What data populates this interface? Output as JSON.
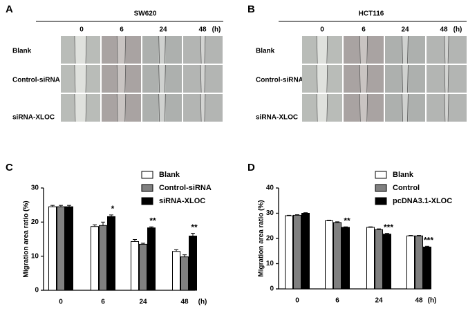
{
  "panels": [
    {
      "label": "A",
      "title": "SW620",
      "columns": [
        "0",
        "6",
        "24",
        "48"
      ],
      "unit": "(h)",
      "rows": [
        "Blank",
        "Control-siRNA",
        "siRNA-XLOC"
      ]
    },
    {
      "label": "B",
      "title": "HCT116",
      "columns": [
        "0",
        "6",
        "24",
        "48"
      ],
      "unit": "(h)",
      "rows": [
        "Blank",
        "Control-siRNA",
        "siRNA-XLOC"
      ]
    }
  ],
  "chart_data": [
    {
      "type": "bar",
      "panel_label": "C",
      "ylabel": "Migration area ratio (%)",
      "xlabel": "(h)",
      "categories": [
        "0",
        "6",
        "24",
        "48"
      ],
      "ylim": [
        0,
        30
      ],
      "yticks": [
        0,
        10,
        20,
        30
      ],
      "grid": false,
      "series": [
        {
          "name": "Blank",
          "color": "#ffffff",
          "values": [
            24.5,
            18.7,
            14.3,
            11.4
          ],
          "errors": [
            0.4,
            0.5,
            0.6,
            0.5
          ],
          "annotations": [
            null,
            null,
            null,
            null
          ]
        },
        {
          "name": "Control-siRNA",
          "color": "#808080",
          "values": [
            24.5,
            19.0,
            13.5,
            9.8
          ],
          "errors": [
            0.4,
            1.0,
            0.3,
            0.6
          ],
          "annotations": [
            null,
            null,
            null,
            null
          ]
        },
        {
          "name": "siRNA-XLOC",
          "color": "#000000",
          "values": [
            24.5,
            21.6,
            18.3,
            15.9
          ],
          "errors": [
            0.4,
            0.5,
            0.3,
            0.8
          ],
          "annotations": [
            null,
            "*",
            "**",
            "**"
          ]
        }
      ]
    },
    {
      "type": "bar",
      "panel_label": "D",
      "ylabel": "Migration area ratio (%)",
      "xlabel": "(h)",
      "categories": [
        "0",
        "6",
        "24",
        "48"
      ],
      "ylim": [
        0,
        40
      ],
      "yticks": [
        0,
        10,
        20,
        30,
        40
      ],
      "grid": false,
      "series": [
        {
          "name": "Blank",
          "color": "#ffffff",
          "values": [
            29.0,
            27.0,
            24.4,
            21.0
          ],
          "errors": [
            0.2,
            0.2,
            0.2,
            0.2
          ],
          "annotations": [
            null,
            null,
            null,
            null
          ]
        },
        {
          "name": "Control",
          "color": "#808080",
          "values": [
            29.2,
            26.3,
            23.5,
            21.0
          ],
          "errors": [
            0.2,
            0.3,
            0.3,
            0.2
          ],
          "annotations": [
            null,
            null,
            null,
            null
          ]
        },
        {
          "name": "pcDNA3.1-XLOC",
          "color": "#000000",
          "values": [
            30.0,
            24.4,
            21.7,
            16.6
          ],
          "errors": [
            0.2,
            0.2,
            0.3,
            0.3
          ],
          "annotations": [
            null,
            "**",
            "***",
            "***"
          ]
        }
      ]
    }
  ]
}
